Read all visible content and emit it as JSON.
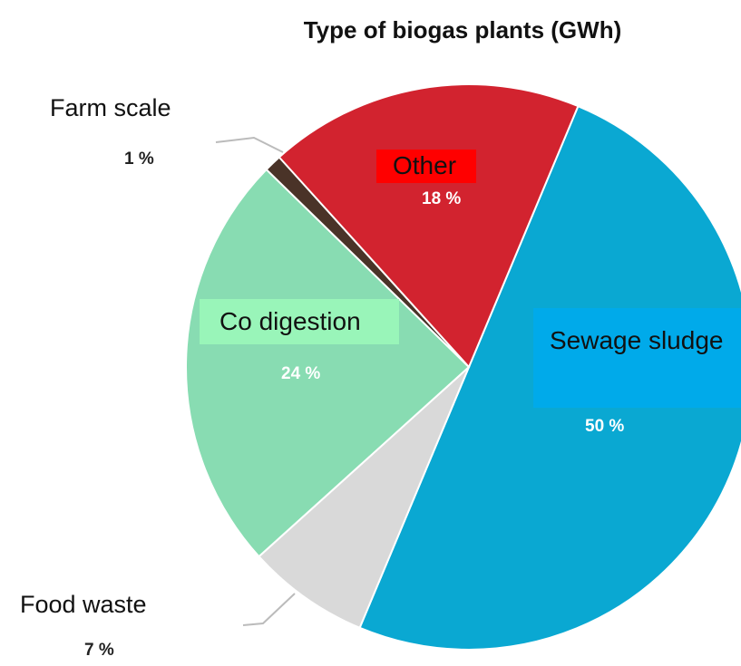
{
  "chart_data": {
    "type": "pie",
    "title": "Type of biogas plants (GWh)",
    "categories": [
      "Sewage sludge",
      "Food waste",
      "Co digestion",
      "Farm scale",
      "Other"
    ],
    "values": [
      50,
      7,
      24,
      1,
      18
    ],
    "value_labels": [
      "50 %",
      "7 %",
      "24 %",
      "1 %",
      "18 %"
    ],
    "colors": [
      "#0aa8d2",
      "#d9d9d9",
      "#88dcb2",
      "#4a3328",
      "#d2232f"
    ]
  }
}
